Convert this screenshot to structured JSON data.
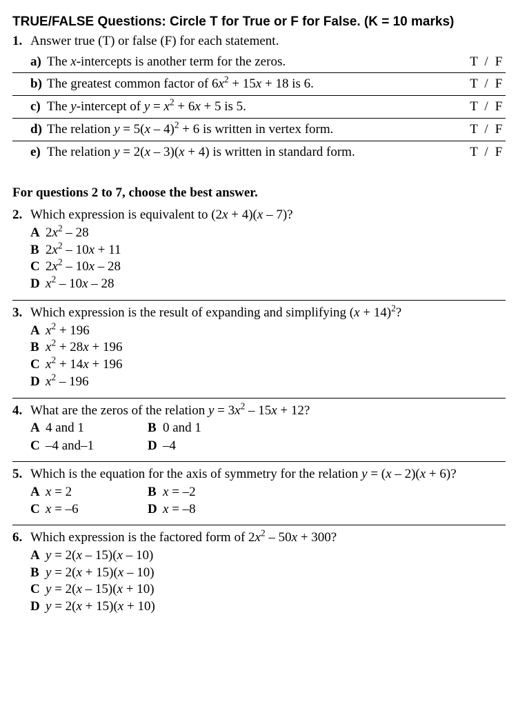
{
  "header": {
    "title": "TRUE/FALSE Questions: Circle T for True or F for False.  (K = 10 marks)"
  },
  "q1": {
    "num": "1.",
    "instruction": "Answer true (T) or false (F) for each statement.",
    "items": [
      {
        "label": "a)",
        "text_html": "The <span class='ital'>x</span>-intercepts is another term for the zeros."
      },
      {
        "label": "b)",
        "text_html": "The greatest common factor of  6<span class='ital'>x</span><sup>2</sup> + 15<span class='ital'>x</span> + 18 is 6."
      },
      {
        "label": "c)",
        "text_html": "The <span class='ital'>y</span>-intercept of <span class='ital'>y</span> = <span class='ital'>x</span><sup>2</sup> + 6<span class='ital'>x</span> + 5 is 5."
      },
      {
        "label": "d)",
        "text_html": "The relation <span class='ital'>y</span> = 5(<span class='ital'>x</span> – 4)<sup>2</sup> + 6 is written in vertex form."
      },
      {
        "label": "e)",
        "text_html": "The relation <span class='ital'>y</span> = 2(<span class='ital'>x</span> – 3)(<span class='ital'>x</span> + 4) is written in standard form."
      }
    ],
    "choice": {
      "t": "T",
      "slash": "/",
      "f": "F"
    }
  },
  "mc_instruction": "For questions 2 to 7, choose the best answer.",
  "mc": [
    {
      "num": "2.",
      "stem_html": "Which expression is equivalent to (2<span class='ital'>x</span> + 4)(<span class='ital'>x</span> – 7)?",
      "layout": "list",
      "opts": [
        {
          "lett": "A",
          "html": "2<span class='ital'>x</span><sup>2</sup> – 28"
        },
        {
          "lett": "B",
          "html": "2<span class='ital'>x</span><sup>2</sup> – 10<span class='ital'>x</span> + 11"
        },
        {
          "lett": "C",
          "html": "2<span class='ital'>x</span><sup>2</sup> – 10<span class='ital'>x</span> – 28"
        },
        {
          "lett": "D",
          "html": "<span class='ital'>x</span><sup>2</sup> – 10<span class='ital'>x</span> – 28"
        }
      ]
    },
    {
      "num": "3.",
      "stem_html": "Which expression is the result of expanding and simplifying (<span class='ital'>x</span> + 14)<sup>2</sup>?",
      "layout": "list",
      "opts": [
        {
          "lett": "A",
          "html": "<span class='ital'>x</span><sup>2</sup> + 196"
        },
        {
          "lett": "B",
          "html": "<span class='ital'>x</span><sup>2</sup> + 28<span class='ital'>x</span> + 196"
        },
        {
          "lett": "C",
          "html": "<span class='ital'>x</span><sup>2</sup> + 14<span class='ital'>x</span> + 196"
        },
        {
          "lett": "D",
          "html": "<span class='ital'>x</span><sup>2</sup> – 196"
        }
      ]
    },
    {
      "num": "4.",
      "stem_html": "What are the zeros of the relation <span class='ital'>y</span> = 3<span class='ital'>x</span><sup>2</sup> – 15<span class='ital'>x</span> + 12?",
      "layout": "grid",
      "opts": [
        {
          "lett": "A",
          "html": "4 and 1"
        },
        {
          "lett": "B",
          "html": "0 and 1"
        },
        {
          "lett": "C",
          "html": "–4 and–1"
        },
        {
          "lett": "D",
          "html": "–4"
        }
      ]
    },
    {
      "num": "5.",
      "stem_html": "Which is the equation for the axis of symmetry for the relation <span class='ital'>y</span> = (<span class='ital'>x</span> – 2)(<span class='ital'>x</span> + 6)?",
      "layout": "grid",
      "opts": [
        {
          "lett": "A",
          "html": "<span class='ital'>x</span> = 2"
        },
        {
          "lett": "B",
          "html": "<span class='ital'>x</span> = –2"
        },
        {
          "lett": "C",
          "html": "<span class='ital'>x</span> = –6"
        },
        {
          "lett": "D",
          "html": "<span class='ital'>x</span> = –8"
        }
      ]
    },
    {
      "num": "6.",
      "stem_html": "Which expression is the factored form of 2<span class='ital'>x</span><sup>2</sup> – 50<span class='ital'>x</span> + 300?",
      "layout": "list",
      "opts": [
        {
          "lett": "A",
          "html": "<span class='ital'>y</span> = 2(<span class='ital'>x</span> – 15)(<span class='ital'>x</span> – 10)"
        },
        {
          "lett": "B",
          "html": "<span class='ital'>y</span> = 2(<span class='ital'>x</span> + 15)(<span class='ital'>x</span> – 10)"
        },
        {
          "lett": "C",
          "html": "<span class='ital'>y</span> = 2(<span class='ital'>x</span> – 15)(<span class='ital'>x</span> + 10)"
        },
        {
          "lett": "D",
          "html": "<span class='ital'>y</span> = 2(<span class='ital'>x</span> + 15)(<span class='ital'>x</span> + 10)"
        }
      ]
    }
  ]
}
